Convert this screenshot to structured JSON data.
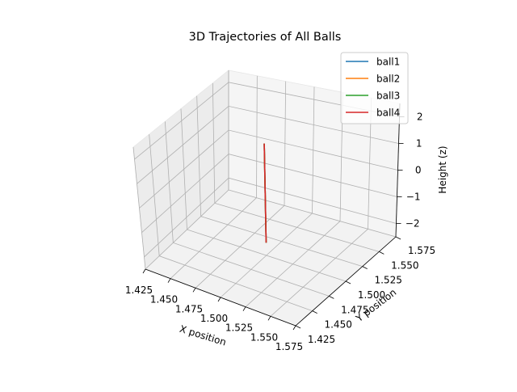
{
  "chart_data": {
    "type": "line",
    "projection": "3d",
    "title": "3D Trajectories of All Balls",
    "xlabel": "X position",
    "ylabel": "Y position",
    "zlabel": "Height (z)",
    "xlim": [
      1.425,
      1.575
    ],
    "ylim": [
      1.425,
      1.575
    ],
    "zlim": [
      -2.5,
      2.5
    ],
    "x_ticks": [
      "1.425",
      "1.450",
      "1.475",
      "1.500",
      "1.525",
      "1.550",
      "1.575"
    ],
    "y_ticks": [
      "1.425",
      "1.450",
      "1.475",
      "1.500",
      "1.525",
      "1.550",
      "1.575"
    ],
    "z_ticks": [
      "−2",
      "−1",
      "0",
      "1",
      "2"
    ],
    "z_tick_values": [
      -2,
      -1,
      0,
      1,
      2
    ],
    "grid": true,
    "legend_position": "top-right",
    "series": [
      {
        "name": "ball1",
        "color": "#1f77b4",
        "x": [
          1.5,
          1.5
        ],
        "y": [
          1.5,
          1.5
        ],
        "z": [
          -2.0,
          1.9
        ]
      },
      {
        "name": "ball2",
        "color": "#ff7f0e",
        "x": [
          1.5,
          1.5
        ],
        "y": [
          1.5,
          1.5
        ],
        "z": [
          -2.0,
          1.9
        ]
      },
      {
        "name": "ball3",
        "color": "#2ca02c",
        "x": [
          1.5,
          1.5
        ],
        "y": [
          1.5,
          1.5
        ],
        "z": [
          -2.0,
          1.9
        ]
      },
      {
        "name": "ball4",
        "color": "#d62728",
        "x": [
          1.5,
          1.5
        ],
        "y": [
          1.5,
          1.5
        ],
        "z": [
          -2.0,
          1.9
        ]
      }
    ]
  }
}
